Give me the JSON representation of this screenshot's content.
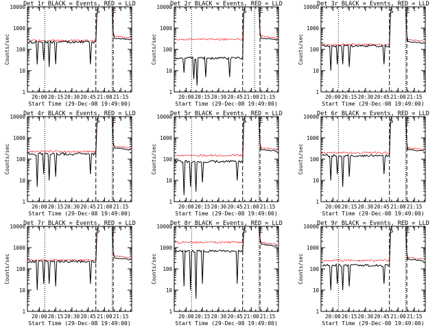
{
  "figure": {
    "x_tick_labels": [
      "20:00",
      "20:15",
      "20:30",
      "20:45",
      "21:00",
      "21:15"
    ],
    "x_axis_label": "Start Time (29-Dec-08 19:49:00)",
    "y_axis_label": "Counts/sec",
    "y_tick_labels": [
      "1",
      "10",
      "100",
      "1000",
      "10000"
    ],
    "colors": {
      "events": "#000000",
      "lld": "#ff0000",
      "axes": "#000000",
      "background": "#ffffff"
    },
    "marker_labels": {
      "s": "S",
      "e": "E"
    }
  },
  "chart_data": [
    {
      "type": "line",
      "title": "Det 1r BLACK = Events, RED = LLD",
      "xlabel": "Start Time (29-Dec-08 19:49:00)",
      "ylabel": "Counts/sec",
      "y_scale": "log",
      "ylim": [
        1,
        10000
      ],
      "xlim": [
        "19:49",
        "21:25"
      ],
      "grid": false,
      "vlines_dotted": [
        "20:05",
        "21:07"
      ],
      "vlines_dashed": [
        "20:52",
        "21:08"
      ],
      "markers": [
        {
          "label": "S",
          "x": "20:54"
        },
        {
          "label": "E",
          "x": "21:09"
        }
      ],
      "series": [
        {
          "name": "Events",
          "color": "#000000",
          "baseline": 230,
          "dips": [
            [
              "19:58",
              20
            ],
            [
              "20:04",
              30
            ],
            [
              "20:09",
              15
            ],
            [
              "20:15",
              20
            ],
            [
              "20:47",
              20
            ]
          ]
        },
        {
          "name": "LLD",
          "color": "#ff0000",
          "baseline": 260,
          "peak": 10000,
          "post": 360
        }
      ]
    },
    {
      "type": "line",
      "title": "Det 2r BLACK = Events, RED = LLD",
      "xlabel": "Start Time (29-Dec-08 19:49:00)",
      "ylabel": "Counts/sec",
      "y_scale": "log",
      "ylim": [
        1,
        10000
      ],
      "xlim": [
        "19:49",
        "21:25"
      ],
      "grid": false,
      "vlines_dotted": [
        "20:05",
        "21:03"
      ],
      "vlines_dashed": [
        "20:52",
        "21:08"
      ],
      "markers": [
        {
          "label": "S",
          "x": "20:54"
        },
        {
          "label": "E",
          "x": "21:09"
        }
      ],
      "series": [
        {
          "name": "Events",
          "color": "#000000",
          "baseline": 40,
          "dips": [
            [
              "19:58",
              8
            ],
            [
              "20:07",
              4
            ],
            [
              "20:10",
              2
            ],
            [
              "20:18",
              5
            ],
            [
              "20:40",
              5
            ]
          ]
        },
        {
          "name": "LLD",
          "color": "#ff0000",
          "baseline": 300,
          "peak": 10000,
          "post": 360
        }
      ]
    },
    {
      "type": "line",
      "title": "Det 3r BLACK = Events, RED = LLD",
      "xlabel": "Start Time (29-Dec-08 19:49:00)",
      "ylabel": "Counts/sec",
      "y_scale": "log",
      "ylim": [
        1,
        10000
      ],
      "xlim": [
        "19:49",
        "21:25"
      ],
      "grid": false,
      "vlines_dotted": [
        "20:05",
        "21:07"
      ],
      "vlines_dashed": [
        "20:52",
        "21:08"
      ],
      "markers": [
        {
          "label": "S",
          "x": "20:54"
        },
        {
          "label": "E",
          "x": "21:09"
        }
      ],
      "series": [
        {
          "name": "Events",
          "color": "#000000",
          "baseline": 150,
          "dips": [
            [
              "19:58",
              10
            ],
            [
              "20:04",
              20
            ],
            [
              "20:09",
              20
            ],
            [
              "20:15",
              15
            ],
            [
              "20:47",
              20
            ]
          ]
        },
        {
          "name": "LLD",
          "color": "#ff0000",
          "baseline": 170,
          "peak": 10000,
          "post": 250
        }
      ]
    },
    {
      "type": "line",
      "title": "Det 4r BLACK = Events, RED = LLD",
      "xlabel": "Start Time (29-Dec-08 19:49:00)",
      "ylabel": "Counts/sec",
      "y_scale": "log",
      "ylim": [
        1,
        10000
      ],
      "xlim": [
        "19:49",
        "21:25"
      ],
      "grid": false,
      "vlines_dotted": [
        "20:05",
        "21:07"
      ],
      "vlines_dashed": [
        "20:52",
        "21:08"
      ],
      "markers": [
        {
          "label": "S",
          "x": "20:54"
        },
        {
          "label": "E",
          "x": "21:09"
        }
      ],
      "series": [
        {
          "name": "Events",
          "color": "#000000",
          "baseline": 180,
          "dips": [
            [
              "19:58",
              5
            ],
            [
              "20:04",
              20
            ],
            [
              "20:09",
              10
            ],
            [
              "20:15",
              15
            ],
            [
              "20:47",
              20
            ]
          ]
        },
        {
          "name": "LLD",
          "color": "#ff0000",
          "baseline": 230,
          "peak": 10000,
          "post": 350
        }
      ]
    },
    {
      "type": "line",
      "title": "Det 5r BLACK = Events, RED = LLD",
      "xlabel": "Start Time (29-Dec-08 19:49:00)",
      "ylabel": "Counts/sec",
      "y_scale": "log",
      "ylim": [
        1,
        10000
      ],
      "xlim": [
        "19:49",
        "21:25"
      ],
      "grid": false,
      "vlines_dotted": [
        "20:05",
        "21:07"
      ],
      "vlines_dashed": [
        "20:52",
        "21:08"
      ],
      "markers": [
        {
          "label": "S",
          "x": "20:54"
        },
        {
          "label": "E",
          "x": "21:09"
        }
      ],
      "series": [
        {
          "name": "Events",
          "color": "#000000",
          "baseline": 80,
          "dips": [
            [
              "19:58",
              2
            ],
            [
              "20:04",
              5
            ],
            [
              "20:09",
              3
            ],
            [
              "20:15",
              8
            ],
            [
              "20:47",
              10
            ]
          ]
        },
        {
          "name": "LLD",
          "color": "#ff0000",
          "baseline": 150,
          "peak": 10000,
          "post": 300
        }
      ]
    },
    {
      "type": "line",
      "title": "Det 6r BLACK = Events, RED = LLD",
      "xlabel": "Start Time (29-Dec-08 19:49:00)",
      "ylabel": "Counts/sec",
      "y_scale": "log",
      "ylim": [
        1,
        10000
      ],
      "xlim": [
        "19:49",
        "21:25"
      ],
      "grid": false,
      "vlines_dotted": [
        "20:05",
        "21:07"
      ],
      "vlines_dashed": [
        "20:52",
        "21:08"
      ],
      "markers": [
        {
          "label": "S",
          "x": "20:54"
        },
        {
          "label": "E",
          "x": "21:09"
        }
      ],
      "series": [
        {
          "name": "Events",
          "color": "#000000",
          "baseline": 150,
          "dips": [
            [
              "19:58",
              10
            ],
            [
              "20:04",
              20
            ],
            [
              "20:09",
              5
            ],
            [
              "20:15",
              15
            ],
            [
              "20:47",
              20
            ]
          ]
        },
        {
          "name": "LLD",
          "color": "#ff0000",
          "baseline": 200,
          "peak": 10000,
          "post": 300
        }
      ]
    },
    {
      "type": "line",
      "title": "Det 7r BLACK = Events, RED = LLD",
      "xlabel": "Start Time (29-Dec-08 19:49:00)",
      "ylabel": "Counts/sec",
      "y_scale": "log",
      "ylim": [
        1,
        10000
      ],
      "xlim": [
        "19:49",
        "21:25"
      ],
      "grid": false,
      "vlines_dotted": [
        "20:05",
        "21:07"
      ],
      "vlines_dashed": [
        "20:52",
        "21:08"
      ],
      "markers": [
        {
          "label": "S",
          "x": "20:54"
        },
        {
          "label": "E",
          "x": "21:09"
        }
      ],
      "series": [
        {
          "name": "Events",
          "color": "#000000",
          "baseline": 230,
          "dips": [
            [
              "19:58",
              10
            ],
            [
              "20:04",
              20
            ],
            [
              "20:09",
              20
            ],
            [
              "20:15",
              15
            ],
            [
              "20:47",
              20
            ]
          ]
        },
        {
          "name": "LLD",
          "color": "#ff0000",
          "baseline": 260,
          "peak": 10000,
          "post": 350
        }
      ]
    },
    {
      "type": "line",
      "title": "Det 8r BLACK = Events, RED = LLD",
      "xlabel": "Start Time (29-Dec-08 19:49:00)",
      "ylabel": "Counts/sec",
      "y_scale": "log",
      "ylim": [
        1,
        10000
      ],
      "xlim": [
        "19:49",
        "21:25"
      ],
      "grid": false,
      "vlines_dotted": [
        "20:05",
        "21:07"
      ],
      "vlines_dashed": [
        "20:52",
        "21:08"
      ],
      "markers": [
        {
          "label": "S",
          "x": "20:54"
        },
        {
          "label": "E",
          "x": "21:09"
        }
      ],
      "series": [
        {
          "name": "Events",
          "color": "#000000",
          "baseline": 700,
          "dips": [
            [
              "19:58",
              15
            ],
            [
              "20:04",
              10
            ],
            [
              "20:09",
              4
            ],
            [
              "20:15",
              20
            ],
            [
              "20:47",
              20
            ]
          ]
        },
        {
          "name": "LLD",
          "color": "#ff0000",
          "baseline": 1800,
          "peak": 10000,
          "post": 1500
        }
      ]
    },
    {
      "type": "line",
      "title": "Det 9r BLACK = Events, RED = LLD",
      "xlabel": "Start Time (29-Dec-08 19:49:00)",
      "ylabel": "Counts/sec",
      "y_scale": "log",
      "ylim": [
        1,
        10000
      ],
      "xlim": [
        "19:49",
        "21:25"
      ],
      "grid": false,
      "vlines_dotted": [
        "20:05",
        "21:07"
      ],
      "vlines_dashed": [
        "20:52",
        "21:08"
      ],
      "markers": [
        {
          "label": "S",
          "x": "20:54"
        },
        {
          "label": "E",
          "x": "21:09"
        }
      ],
      "series": [
        {
          "name": "Events",
          "color": "#000000",
          "baseline": 150,
          "dips": [
            [
              "19:58",
              10
            ],
            [
              "20:04",
              20
            ],
            [
              "20:09",
              10
            ],
            [
              "20:15",
              15
            ],
            [
              "20:47",
              20
            ]
          ]
        },
        {
          "name": "LLD",
          "color": "#ff0000",
          "baseline": 250,
          "peak": 10000,
          "post": 300
        }
      ]
    }
  ]
}
